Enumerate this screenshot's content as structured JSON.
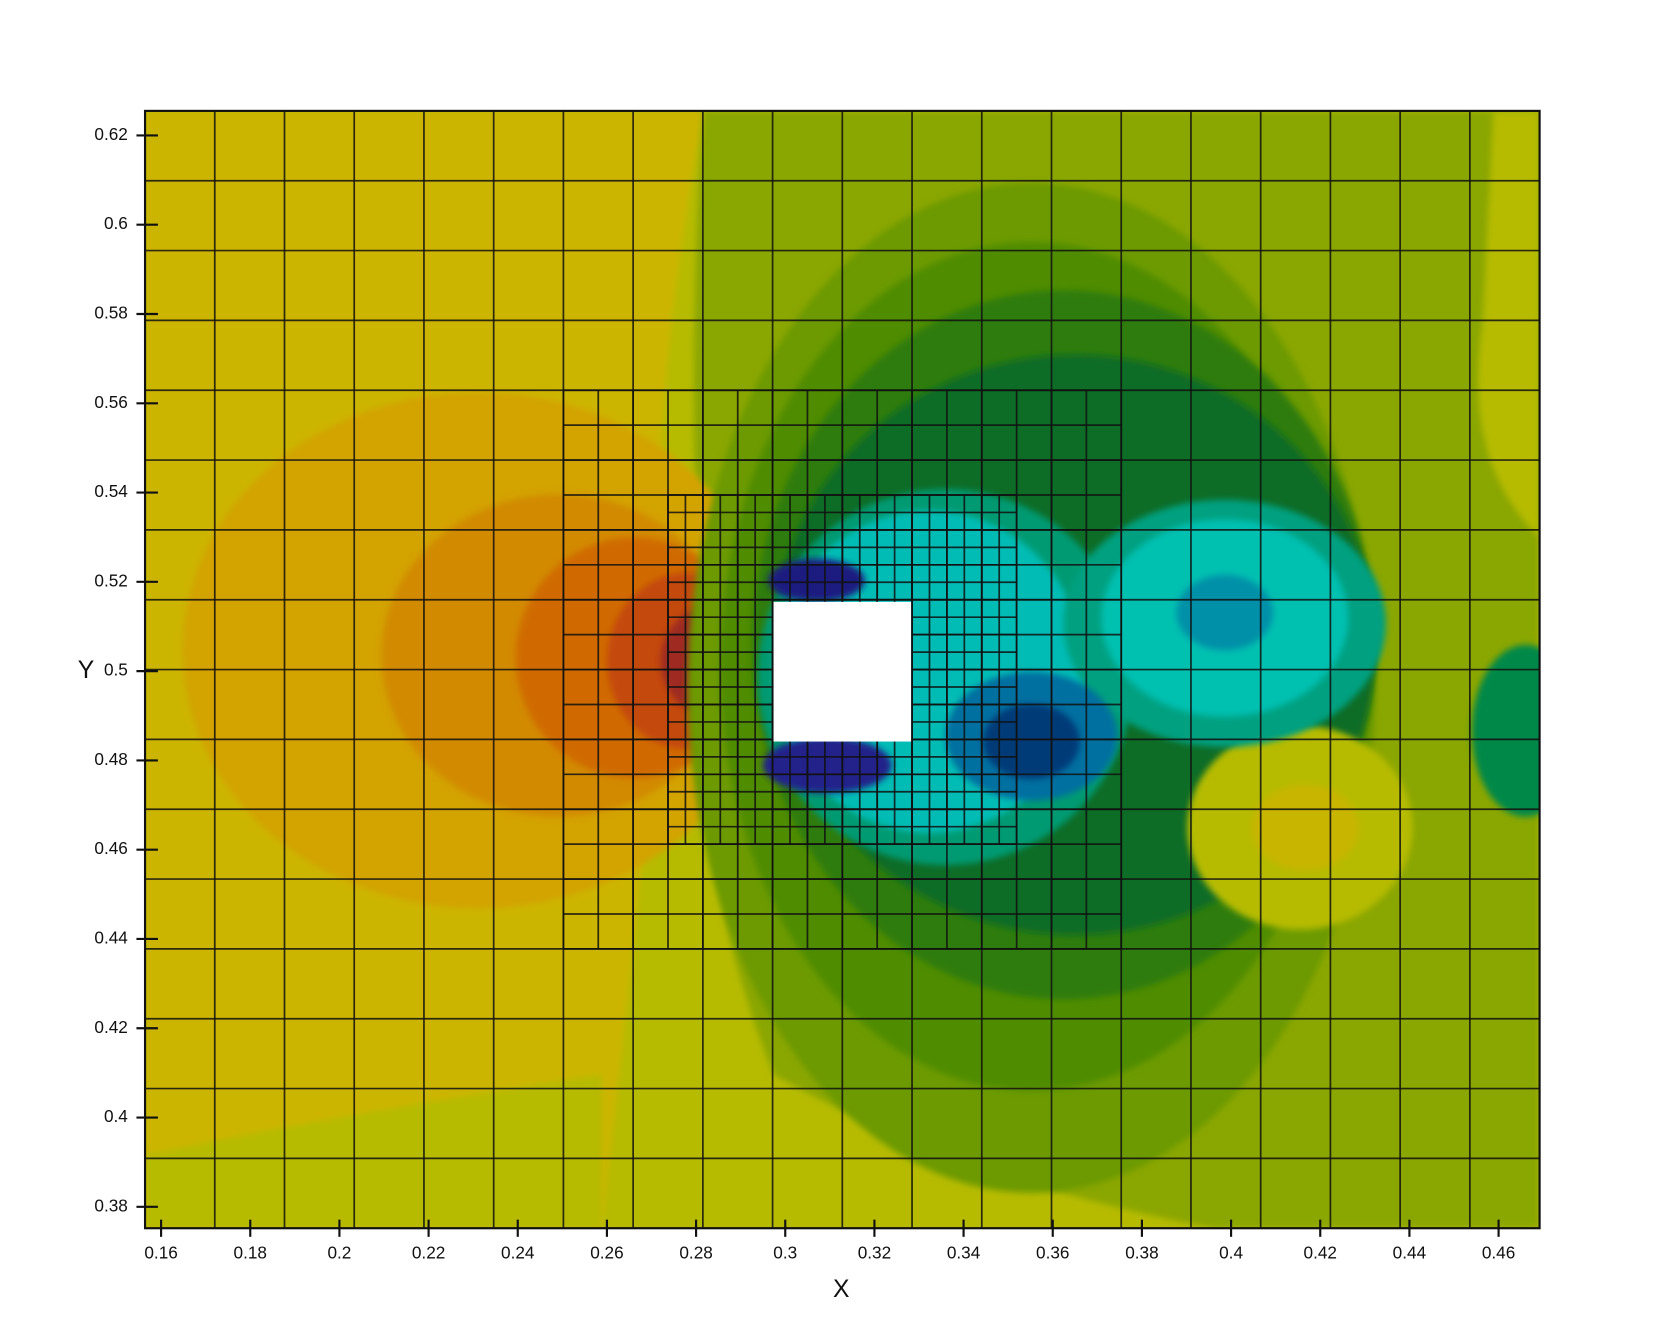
{
  "chart_data": {
    "type": "contour",
    "x_label": "X",
    "y_label": "Y",
    "xlim": [
      0.1564,
      0.4692
    ],
    "ylim": [
      0.3752,
      0.6255
    ],
    "xticks": [
      0.16,
      0.18,
      0.2,
      0.22,
      0.24,
      0.26,
      0.28,
      0.3,
      0.32,
      0.34,
      0.36,
      0.38,
      0.4,
      0.42,
      0.44,
      0.46
    ],
    "yticks": [
      0.38,
      0.4,
      0.42,
      0.44,
      0.46,
      0.48,
      0.5,
      0.52,
      0.54,
      0.56,
      0.58,
      0.6,
      0.62
    ]
  }
}
